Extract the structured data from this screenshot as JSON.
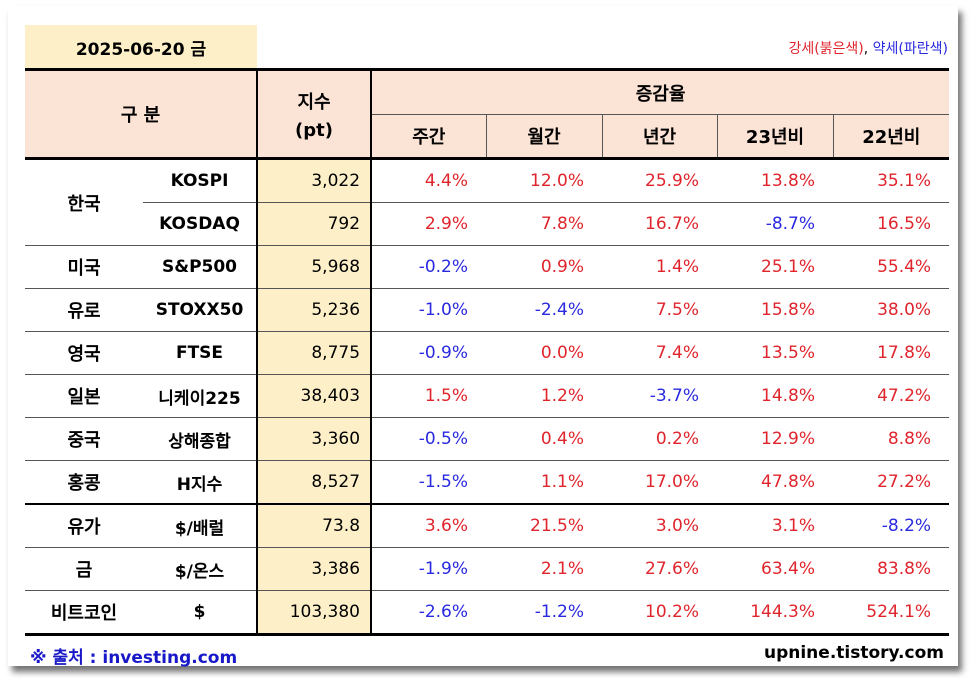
{
  "date": "2025-06-20 금",
  "legend": {
    "strong": "강세(붉은색)",
    "separator": ", ",
    "weak": "약세(파란색)"
  },
  "header": {
    "category": "구 분",
    "index_line1": "지수",
    "index_line2": "(pt)",
    "change_group": "증감율",
    "columns": [
      "주간",
      "월간",
      "년간",
      "23년비",
      "22년비"
    ]
  },
  "colors": {
    "positive": "#e0242c",
    "negative": "#2929e0",
    "header_bg": "#fbe3d6",
    "highlight_bg": "#fdf0c8"
  },
  "rows": [
    {
      "region": "한국",
      "name": "KOSPI",
      "index": "3,022",
      "weekly": "4.4%",
      "monthly": "12.0%",
      "yearly": "25.9%",
      "vs23": "13.8%",
      "vs22": "35.1%"
    },
    {
      "region": "",
      "name": "KOSDAQ",
      "index": "792",
      "weekly": "2.9%",
      "monthly": "7.8%",
      "yearly": "16.7%",
      "vs23": "-8.7%",
      "vs22": "16.5%"
    },
    {
      "region": "미국",
      "name": "S&P500",
      "index": "5,968",
      "weekly": "-0.2%",
      "monthly": "0.9%",
      "yearly": "1.4%",
      "vs23": "25.1%",
      "vs22": "55.4%"
    },
    {
      "region": "유로",
      "name": "STOXX50",
      "index": "5,236",
      "weekly": "-1.0%",
      "monthly": "-2.4%",
      "yearly": "7.5%",
      "vs23": "15.8%",
      "vs22": "38.0%"
    },
    {
      "region": "영국",
      "name": "FTSE",
      "index": "8,775",
      "weekly": "-0.9%",
      "monthly": "0.0%",
      "yearly": "7.4%",
      "vs23": "13.5%",
      "vs22": "17.8%"
    },
    {
      "region": "일본",
      "name": "니케이225",
      "index": "38,403",
      "weekly": "1.5%",
      "monthly": "1.2%",
      "yearly": "-3.7%",
      "vs23": "14.8%",
      "vs22": "47.2%"
    },
    {
      "region": "중국",
      "name": "상해종합",
      "index": "3,360",
      "weekly": "-0.5%",
      "monthly": "0.4%",
      "yearly": "0.2%",
      "vs23": "12.9%",
      "vs22": "8.8%"
    },
    {
      "region": "홍콩",
      "name": "H지수",
      "index": "8,527",
      "weekly": "-1.5%",
      "monthly": "1.1%",
      "yearly": "17.0%",
      "vs23": "47.8%",
      "vs22": "27.2%"
    },
    {
      "region": "유가",
      "name": "$/배럴",
      "index": "73.8",
      "weekly": "3.6%",
      "monthly": "21.5%",
      "yearly": "3.0%",
      "vs23": "3.1%",
      "vs22": "-8.2%"
    },
    {
      "region": "금",
      "name": "$/온스",
      "index": "3,386",
      "weekly": "-1.9%",
      "monthly": "2.1%",
      "yearly": "27.6%",
      "vs23": "63.4%",
      "vs22": "83.8%"
    },
    {
      "region": "비트코인",
      "name": "$",
      "index": "103,380",
      "weekly": "-2.6%",
      "monthly": "-1.2%",
      "yearly": "10.2%",
      "vs23": "144.3%",
      "vs22": "524.1%"
    }
  ],
  "footer": {
    "source": "※ 출처 : investing.com",
    "site": "upnine.tistory.com"
  }
}
